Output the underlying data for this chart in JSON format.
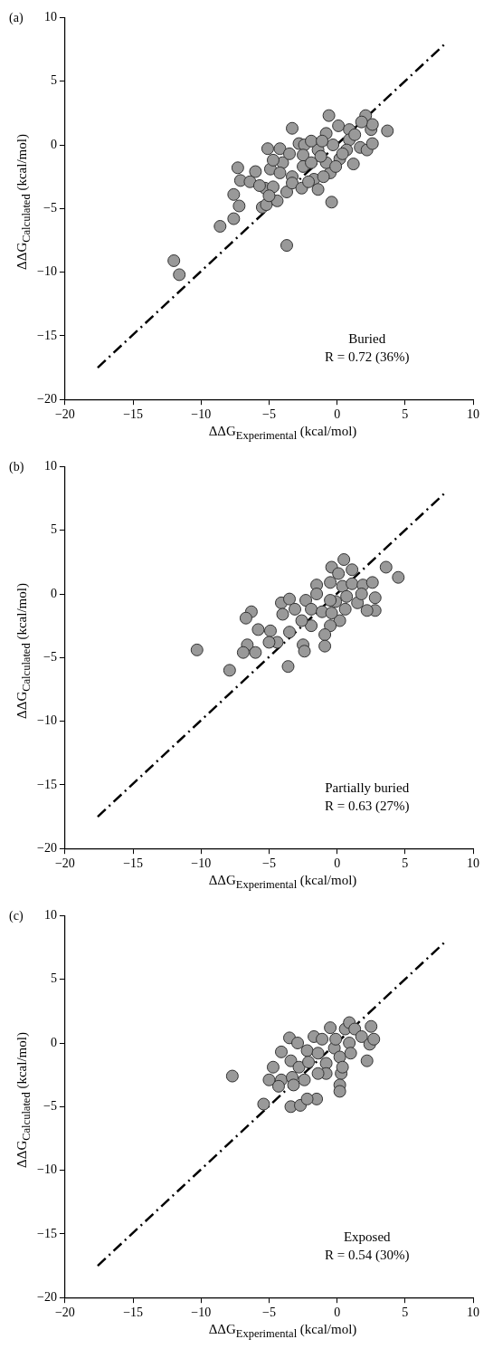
{
  "chart_data": [
    {
      "type": "scatter",
      "title": "(a)",
      "xlabel": "ΔΔG$_{Experimental}$ (kcal/mol)",
      "ylabel": "ΔΔG$_{Calculated}$ (kcal/mol)",
      "annotations": [
        "Buried",
        "R = 0.72 (36%)"
      ],
      "xlim": [
        -20,
        10
      ],
      "ylim": [
        -20,
        10
      ],
      "xticks": [
        -20,
        -15,
        -10,
        -5,
        0,
        5,
        10
      ],
      "yticks": [
        -20,
        -15,
        -10,
        -5,
        0,
        5,
        10
      ],
      "grid": false,
      "legend": false,
      "marker": "circle",
      "series": [
        {
          "color": "#999999",
          "x": [
            -0.6,
            2.1,
            3.7,
            -3.3,
            -7.3,
            -7.1,
            -7.6,
            -7.2,
            -7.6,
            -8.6,
            -3.7,
            -0.4,
            -12.0,
            -11.6,
            -5.1,
            -4.2,
            -6.0,
            -6.4,
            -5.3,
            -5.5,
            -5.2,
            -4.4,
            -4.7,
            -3.7,
            -4.9,
            -4.0,
            -2.8,
            -2.4,
            -2.5,
            -2.5,
            -1.4,
            -1.7,
            -1.4,
            -0.5,
            -0.3,
            -0.8,
            0.1,
            0.9,
            0.9,
            0.7,
            1.2,
            1.7,
            2.2,
            2.6,
            2.5,
            2.6,
            1.8,
            1.3,
            0.2,
            -0.8,
            -1.2,
            -1.9,
            -3.3,
            -3.3,
            -4.2,
            -4.7,
            -3.5,
            -1.9,
            -1.1,
            -2.6,
            -2.1,
            -1.0,
            -0.1,
            0.4,
            -5.0,
            -5.7
          ],
          "values": [
            2.3,
            2.3,
            1.1,
            1.3,
            -1.8,
            -2.8,
            -3.9,
            -4.8,
            -5.8,
            -6.4,
            -7.9,
            -4.5,
            -9.1,
            -10.2,
            -0.3,
            -0.3,
            -2.1,
            -2.9,
            -3.4,
            -4.9,
            -4.7,
            -4.4,
            -3.3,
            -3.7,
            -1.9,
            -1.4,
            0.1,
            0.0,
            -0.8,
            -1.7,
            -0.4,
            -2.7,
            -3.5,
            -2.2,
            0.0,
            0.9,
            1.5,
            1.2,
            0.4,
            -0.4,
            -1.5,
            -0.2,
            -0.4,
            0.1,
            1.2,
            1.6,
            1.8,
            0.8,
            -1.1,
            -1.4,
            -0.9,
            -1.4,
            -2.5,
            -3.0,
            -2.2,
            -1.2,
            -0.7,
            0.3,
            0.3,
            -3.4,
            -2.9,
            -2.5,
            -1.7,
            -0.7,
            -4.0,
            -3.2
          ]
        },
        {
          "type": "line",
          "color": "#000000",
          "line_style": "dashed",
          "marker": "none",
          "x": [
            -17.6,
            8
          ],
          "values": [
            -17.5,
            8
          ]
        }
      ]
    },
    {
      "type": "scatter",
      "title": "(b)",
      "xlabel": "ΔΔG$_{Experimental}$ (kcal/mol)",
      "ylabel": "ΔΔG$_{Calculated}$ (kcal/mol)",
      "annotations": [
        "Partially buried",
        "R = 0.63 (27%)"
      ],
      "xlim": [
        -20,
        10
      ],
      "ylim": [
        -20,
        10
      ],
      "xticks": [
        -20,
        -15,
        -10,
        -5,
        0,
        5,
        10
      ],
      "yticks": [
        -20,
        -15,
        -10,
        -5,
        0,
        5,
        10
      ],
      "grid": false,
      "legend": false,
      "marker": "circle",
      "series": [
        {
          "color": "#999999",
          "x": [
            0.5,
            -0.4,
            1.1,
            0.1,
            3.6,
            4.5,
            -10.3,
            -7.9,
            -3.6,
            -6.3,
            -6.7,
            -5.8,
            -6.6,
            -6.9,
            -6.0,
            -4.9,
            -4.4,
            -5.0,
            -4.1,
            -3.5,
            -4.0,
            -3.5,
            -2.5,
            -2.4,
            -2.3,
            -1.5,
            -1.5,
            -0.5,
            0.4,
            1.1,
            1.9,
            2.6,
            2.8,
            2.8,
            2.2,
            1.5,
            0.7,
            0.6,
            0.2,
            -0.5,
            -0.9,
            -0.9,
            -1.9,
            -1.9,
            -2.6,
            -3.1,
            -1.1,
            -0.4,
            -0.1,
            -0.5,
            1.8
          ],
          "values": [
            2.7,
            2.1,
            1.9,
            1.6,
            2.1,
            1.3,
            -4.4,
            -6.0,
            -5.7,
            -1.4,
            -1.9,
            -2.8,
            -4.0,
            -4.6,
            -4.6,
            -2.9,
            -3.8,
            -3.8,
            -0.7,
            -0.4,
            -1.6,
            -3.0,
            -4.0,
            -4.5,
            -0.5,
            0.7,
            0.0,
            0.9,
            0.6,
            0.8,
            0.7,
            0.9,
            -0.3,
            -1.3,
            -1.3,
            -0.7,
            -0.2,
            -1.2,
            -2.1,
            -2.5,
            -3.2,
            -4.1,
            -1.2,
            -2.5,
            -2.1,
            -1.2,
            -1.4,
            -1.5,
            -0.6,
            -0.5,
            0.0
          ]
        },
        {
          "type": "line",
          "color": "#000000",
          "line_style": "dashed",
          "marker": "none",
          "x": [
            -17.6,
            8
          ],
          "values": [
            -17.5,
            8
          ]
        }
      ]
    },
    {
      "type": "scatter",
      "title": "(c)",
      "xlabel": "ΔΔG$_{Experimental}$ (kcal/mol)",
      "ylabel": "ΔΔG$_{Calculated}$ (kcal/mol)",
      "annotations": [
        "Exposed",
        "R = 0.54 (30%)"
      ],
      "xlim": [
        -20,
        10
      ],
      "ylim": [
        -20,
        10
      ],
      "xticks": [
        -20,
        -15,
        -10,
        -5,
        0,
        5,
        10
      ],
      "yticks": [
        -20,
        -15,
        -10,
        -5,
        0,
        5,
        10
      ],
      "grid": false,
      "legend": false,
      "marker": "circle",
      "series": [
        {
          "color": "#999999",
          "x": [
            -7.7,
            -5.0,
            -4.1,
            -3.3,
            -3.2,
            -4.7,
            -4.1,
            -3.5,
            -2.9,
            -3.4,
            -2.8,
            -2.2,
            -2.1,
            -1.7,
            -1.4,
            -1.1,
            -0.8,
            -0.5,
            -0.2,
            -0.1,
            0.2,
            0.3,
            0.2,
            0.4,
            0.6,
            0.9,
            0.9,
            1.3,
            1.0,
            1.8,
            2.4,
            2.5,
            2.7,
            2.2,
            -0.8,
            -1.4,
            -2.4,
            -3.4,
            -2.7,
            -1.5,
            0.2,
            -5.4,
            -2.2,
            -4.3
          ],
          "values": [
            -2.6,
            -2.9,
            -2.9,
            -2.7,
            -3.3,
            -1.9,
            -0.7,
            0.4,
            0.0,
            -1.4,
            -1.9,
            -0.6,
            -1.5,
            0.5,
            -0.8,
            0.3,
            -1.6,
            1.2,
            -0.4,
            0.3,
            -1.1,
            -2.4,
            -3.3,
            -1.9,
            1.1,
            1.6,
            0.0,
            1.1,
            -0.8,
            0.5,
            -0.1,
            1.3,
            0.3,
            -1.4,
            -2.4,
            -2.4,
            -2.9,
            -5.0,
            -4.9,
            -4.4,
            -3.8,
            -4.8,
            -4.4,
            -3.4
          ]
        },
        {
          "type": "line",
          "color": "#000000",
          "line_style": "dashed",
          "marker": "none",
          "x": [
            -17.6,
            8
          ],
          "values": [
            -17.5,
            8
          ]
        }
      ]
    }
  ]
}
